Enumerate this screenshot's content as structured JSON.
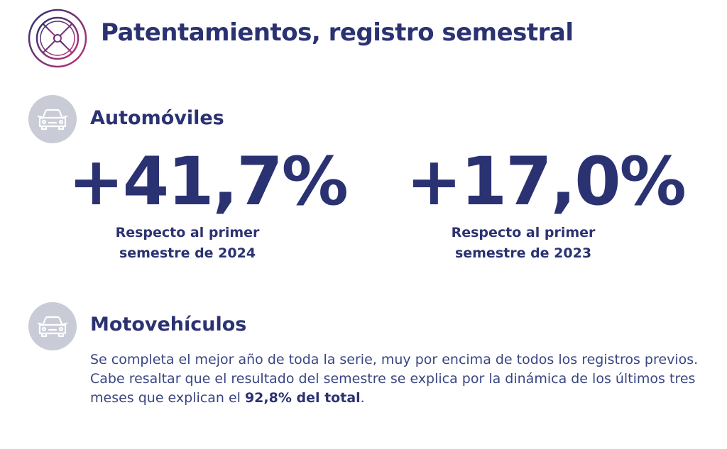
{
  "header": {
    "title": "Patentamientos, registro semestral",
    "icon": "wheel-icon",
    "icon_colors": [
      "#2b3272",
      "#c2327a"
    ]
  },
  "automoviles": {
    "icon": "car-icon",
    "heading": "Automóviles",
    "stats": [
      {
        "value": "+41,7%",
        "caption_line1": "Respecto al primer",
        "caption_line2": "semestre de 2024"
      },
      {
        "value": "+17,0%",
        "caption_line1": "Respecto al primer",
        "caption_line2": "semestre de 2023"
      }
    ]
  },
  "motovehiculos": {
    "icon": "car-icon",
    "heading": "Motovehículos",
    "text_before": "Se completa el mejor año de toda la serie, muy por encima de todos los registros previos. Cabe resaltar que el resultado del semestre se explica por la dinámica de los últimos tres meses que explican el ",
    "text_bold": "92,8% del total",
    "text_after": "."
  },
  "colors": {
    "primary": "#2b3272",
    "icon_bg": "#c9cbd6",
    "accent": "#c2327a"
  }
}
